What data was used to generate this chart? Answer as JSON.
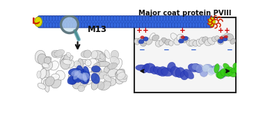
{
  "title_text": "Major coat protein PVIII",
  "m13_label": "M13",
  "bg_color": "#ffffff",
  "phage_body_color": "#3366dd",
  "phage_body_dark": "#1a3a9a",
  "phage_cap_color": "#dddd00",
  "red_protein_color": "#cc2200",
  "magnifier_glass_color": "#c8e0ec",
  "magnifier_frame_color": "#607880",
  "magnifier_handle_color": "#7ab0c0",
  "arrow_color": "#111111",
  "plus_color": "#cc0000",
  "minus_color": "#2255cc",
  "box_outline_color": "#222222",
  "protein_gray_light": "#e0e0e0",
  "protein_gray_mid": "#c0c0c0",
  "protein_gray_dark": "#909090",
  "blue_region_dark": "#2244bb",
  "blue_region_mid": "#6688dd",
  "blue_region_light": "#aabbee",
  "green_region": "#33cc11",
  "title_fontsize": 7.2,
  "m13_fontsize": 8.5
}
